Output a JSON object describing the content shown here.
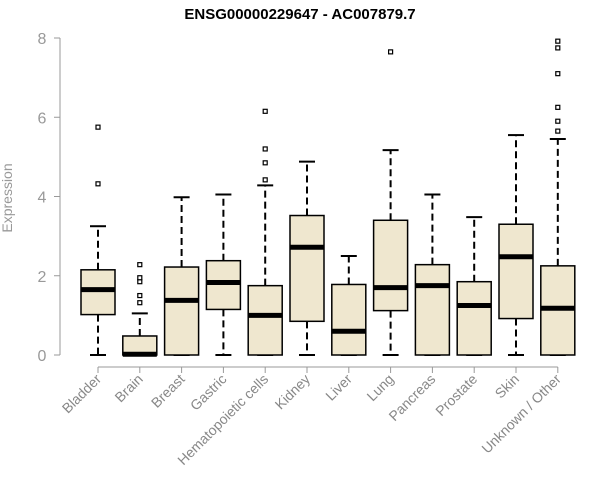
{
  "chart_data": {
    "type": "boxplot",
    "title": "ENSG00000229647 - AC007879.7",
    "xlabel": "",
    "ylabel": "Expression",
    "ylim": [
      0,
      8
    ],
    "yticks": [
      0,
      2,
      4,
      6,
      8
    ],
    "grid": false,
    "box_color": "#efe7cf",
    "categories": [
      "Bladder",
      "Brain",
      "Breast",
      "Gastric",
      "Hematopoietic cells",
      "Kidney",
      "Liver",
      "Lung",
      "Pancreas",
      "Prostate",
      "Skin",
      "Unknown / Other"
    ],
    "boxes": [
      {
        "category": "Bladder",
        "whisker_low": 0,
        "q1": 1.02,
        "median": 1.65,
        "q3": 2.15,
        "whisker_high": 3.25,
        "outliers": [
          4.32,
          5.75
        ]
      },
      {
        "category": "Brain",
        "whisker_low": 0,
        "q1": 0,
        "median": 0.02,
        "q3": 0.48,
        "whisker_high": 1.05,
        "outliers": [
          1.32,
          1.5,
          1.85,
          1.95,
          2.28
        ]
      },
      {
        "category": "Breast",
        "whisker_low": 0,
        "q1": 0,
        "median": 1.38,
        "q3": 2.22,
        "whisker_high": 3.98,
        "outliers": []
      },
      {
        "category": "Gastric",
        "whisker_low": 0,
        "q1": 1.15,
        "median": 1.83,
        "q3": 2.38,
        "whisker_high": 4.05,
        "outliers": []
      },
      {
        "category": "Hematopoietic cells",
        "whisker_low": 0,
        "q1": 0,
        "median": 1.0,
        "q3": 1.75,
        "whisker_high": 4.28,
        "outliers": [
          4.42,
          4.85,
          5.2,
          6.15
        ]
      },
      {
        "category": "Kidney",
        "whisker_low": 0,
        "q1": 0.85,
        "median": 2.72,
        "q3": 3.52,
        "whisker_high": 4.88,
        "outliers": []
      },
      {
        "category": "Liver",
        "whisker_low": 0,
        "q1": 0,
        "median": 0.6,
        "q3": 1.78,
        "whisker_high": 2.5,
        "outliers": []
      },
      {
        "category": "Lung",
        "whisker_low": 0,
        "q1": 1.12,
        "median": 1.7,
        "q3": 3.4,
        "whisker_high": 5.17,
        "outliers": [
          7.65
        ]
      },
      {
        "category": "Pancreas",
        "whisker_low": 0,
        "q1": 0,
        "median": 1.75,
        "q3": 2.28,
        "whisker_high": 4.05,
        "outliers": []
      },
      {
        "category": "Prostate",
        "whisker_low": 0,
        "q1": 0,
        "median": 1.25,
        "q3": 1.85,
        "whisker_high": 3.48,
        "outliers": []
      },
      {
        "category": "Skin",
        "whisker_low": 0,
        "q1": 0.92,
        "median": 2.48,
        "q3": 3.3,
        "whisker_high": 5.55,
        "outliers": []
      },
      {
        "category": "Unknown / Other",
        "whisker_low": 0,
        "q1": 0,
        "median": 1.18,
        "q3": 2.25,
        "whisker_high": 5.45,
        "outliers": [
          5.65,
          5.9,
          6.25,
          7.1,
          7.75,
          7.92
        ]
      }
    ]
  }
}
